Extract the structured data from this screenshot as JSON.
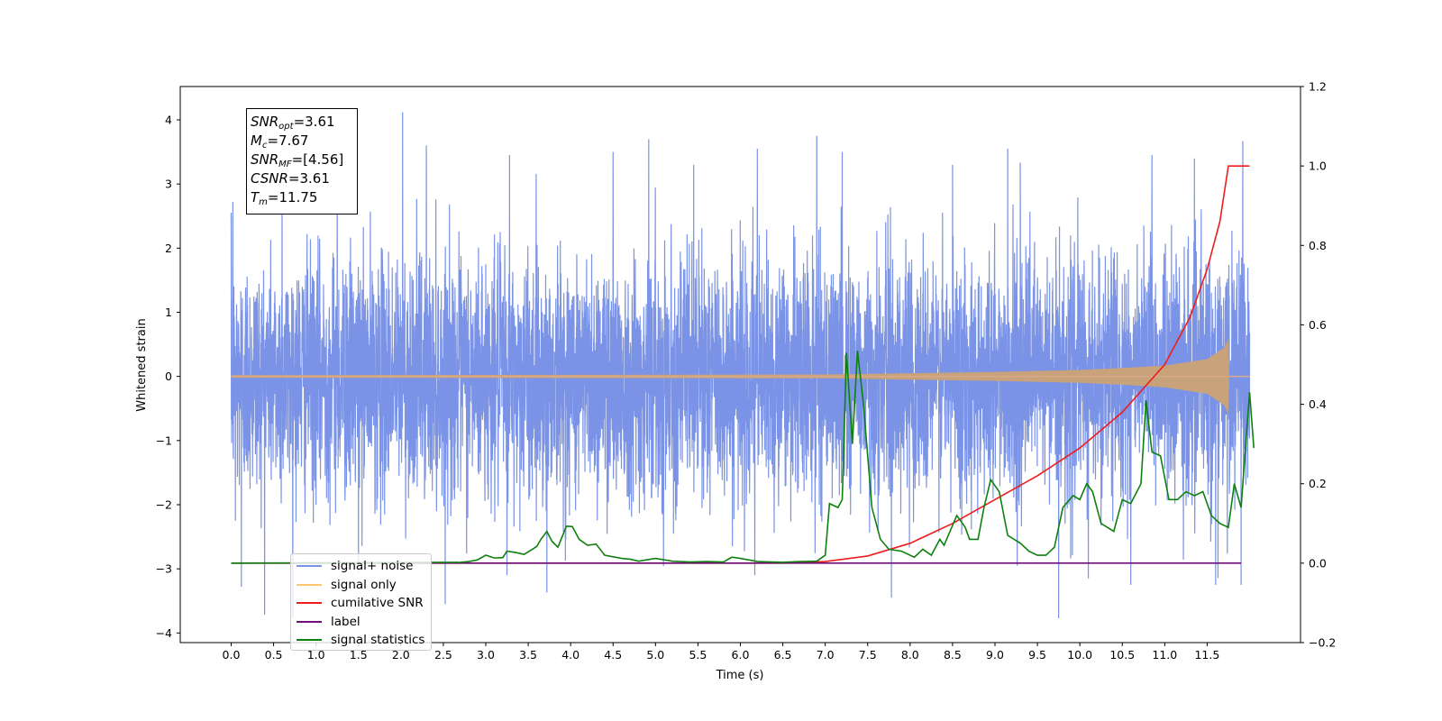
{
  "chart_data": {
    "type": "line",
    "title": "",
    "xlabel": "Time (s)",
    "ylabel": "Whitened strain",
    "y2label": "",
    "xlim": [
      -0.6,
      12.6
    ],
    "ylim": [
      -4.15,
      4.52
    ],
    "y2lim": [
      -0.2,
      1.2
    ],
    "x_ticks": [
      0.0,
      0.5,
      1.0,
      1.5,
      2.0,
      2.5,
      3.0,
      3.5,
      4.0,
      4.5,
      5.0,
      5.5,
      6.0,
      6.5,
      7.0,
      7.5,
      8.0,
      8.5,
      9.0,
      9.5,
      10.0,
      10.5,
      11.0,
      11.5
    ],
    "x_tick_labels": [
      "0.0",
      "0.5",
      "1.0",
      "1.5",
      "2.0",
      "2.5",
      "3.0",
      "3.5",
      "4.0",
      "4.5",
      "5.0",
      "5.5",
      "6.0",
      "6.5",
      "7.0",
      "7.5",
      "8.0",
      "8.5",
      "9.0",
      "9.5",
      "10.0",
      "10.5",
      "11.0",
      "11.5"
    ],
    "y_ticks": [
      -4,
      -3,
      -2,
      -1,
      0,
      1,
      2,
      3,
      4
    ],
    "y_tick_labels": [
      "−4",
      "−3",
      "−2",
      "−1",
      "0",
      "1",
      "2",
      "3",
      "4"
    ],
    "y2_ticks": [
      -0.2,
      0.0,
      0.2,
      0.4,
      0.6,
      0.8,
      1.0,
      1.2
    ],
    "y2_tick_labels": [
      "−0.2",
      "0.0",
      "0.2",
      "0.4",
      "0.6",
      "0.8",
      "1.0",
      "1.2"
    ],
    "grid": false,
    "legend_position": "lower-left",
    "series": [
      {
        "name": "signal+ noise",
        "axis": "left",
        "color": "#7a93e6",
        "description": "dense gaussian noise trace sampled over 0.0–12.0 s, core roughly between −1.5 and 1.5 with spikes to about 4.1 and −3.8",
        "x_range": [
          0.0,
          12.0
        ],
        "typical_band": [
          -1.5,
          1.5
        ],
        "max": 4.12,
        "min": -3.77,
        "peaks": [
          {
            "x": 0.02,
            "y": 2.72
          },
          {
            "x": 0.05,
            "y": -2.25
          },
          {
            "x": 0.12,
            "y": -3.28
          },
          {
            "x": 0.6,
            "y": 3.33
          },
          {
            "x": 1.25,
            "y": 3.45
          },
          {
            "x": 1.5,
            "y": -3.05
          },
          {
            "x": 2.02,
            "y": 4.12
          },
          {
            "x": 2.3,
            "y": 3.6
          },
          {
            "x": 3.28,
            "y": 3.45
          },
          {
            "x": 3.25,
            "y": -3.1
          },
          {
            "x": 3.72,
            "y": -3.37
          },
          {
            "x": 4.5,
            "y": 3.5
          },
          {
            "x": 4.92,
            "y": 3.7
          },
          {
            "x": 5.45,
            "y": 3.3
          },
          {
            "x": 6.2,
            "y": 3.55
          },
          {
            "x": 6.17,
            "y": -3.1
          },
          {
            "x": 6.9,
            "y": 3.75
          },
          {
            "x": 7.2,
            "y": 3.5
          },
          {
            "x": 7.78,
            "y": -3.45
          },
          {
            "x": 8.5,
            "y": 3.3
          },
          {
            "x": 9.15,
            "y": 3.55
          },
          {
            "x": 9.75,
            "y": -3.77
          },
          {
            "x": 10.1,
            "y": -3.15
          },
          {
            "x": 10.6,
            "y": -3.25
          },
          {
            "x": 10.85,
            "y": 3.45
          },
          {
            "x": 11.35,
            "y": 3.4
          },
          {
            "x": 11.6,
            "y": -3.25
          },
          {
            "x": 11.92,
            "y": 3.67
          },
          {
            "x": 11.9,
            "y": -3.25
          }
        ]
      },
      {
        "name": "signal only",
        "axis": "left",
        "color": "#ffc66e",
        "description": "chirp waveform: near-zero flat line, amplitude slowly growing after ~7.5 s and peaking near 11.75 s",
        "envelope": [
          {
            "x": 0.0,
            "y": 0.02
          },
          {
            "x": 7.0,
            "y": 0.03
          },
          {
            "x": 8.0,
            "y": 0.05
          },
          {
            "x": 9.0,
            "y": 0.07
          },
          {
            "x": 10.0,
            "y": 0.1
          },
          {
            "x": 10.5,
            "y": 0.13
          },
          {
            "x": 11.0,
            "y": 0.17
          },
          {
            "x": 11.5,
            "y": 0.27
          },
          {
            "x": 11.7,
            "y": 0.45
          },
          {
            "x": 11.75,
            "y": 0.58
          },
          {
            "x": 11.76,
            "y": 0.0
          },
          {
            "x": 12.0,
            "y": 0.0
          }
        ]
      },
      {
        "name": "cumilative SNR",
        "axis": "right",
        "color": "#ee1c1c",
        "points": [
          {
            "x": 0.0,
            "y": 0.0
          },
          {
            "x": 6.5,
            "y": 0.0
          },
          {
            "x": 7.0,
            "y": 0.004
          },
          {
            "x": 7.5,
            "y": 0.018
          },
          {
            "x": 8.0,
            "y": 0.05
          },
          {
            "x": 8.5,
            "y": 0.1
          },
          {
            "x": 9.0,
            "y": 0.16
          },
          {
            "x": 9.5,
            "y": 0.22
          },
          {
            "x": 10.0,
            "y": 0.29
          },
          {
            "x": 10.5,
            "y": 0.38
          },
          {
            "x": 11.0,
            "y": 0.5
          },
          {
            "x": 11.3,
            "y": 0.62
          },
          {
            "x": 11.5,
            "y": 0.74
          },
          {
            "x": 11.65,
            "y": 0.86
          },
          {
            "x": 11.75,
            "y": 1.0
          },
          {
            "x": 12.0,
            "y": 1.0
          }
        ]
      },
      {
        "name": "label",
        "axis": "right",
        "color": "#6f0f78",
        "points": [
          {
            "x": 0.0,
            "y": 0.0
          },
          {
            "x": 11.9,
            "y": 0.0
          }
        ]
      },
      {
        "name": "signal statistics",
        "axis": "right",
        "color": "#0e800e",
        "points": [
          {
            "x": 0.0,
            "y": 0.0
          },
          {
            "x": 2.7,
            "y": 0.002
          },
          {
            "x": 2.8,
            "y": 0.004
          },
          {
            "x": 2.9,
            "y": 0.008
          },
          {
            "x": 3.0,
            "y": 0.02
          },
          {
            "x": 3.1,
            "y": 0.013
          },
          {
            "x": 3.2,
            "y": 0.014
          },
          {
            "x": 3.25,
            "y": 0.03
          },
          {
            "x": 3.35,
            "y": 0.027
          },
          {
            "x": 3.45,
            "y": 0.022
          },
          {
            "x": 3.55,
            "y": 0.035
          },
          {
            "x": 3.6,
            "y": 0.042
          },
          {
            "x": 3.65,
            "y": 0.06
          },
          {
            "x": 3.72,
            "y": 0.08
          },
          {
            "x": 3.78,
            "y": 0.055
          },
          {
            "x": 3.85,
            "y": 0.04
          },
          {
            "x": 3.95,
            "y": 0.093
          },
          {
            "x": 4.02,
            "y": 0.092
          },
          {
            "x": 4.1,
            "y": 0.06
          },
          {
            "x": 4.2,
            "y": 0.045
          },
          {
            "x": 4.3,
            "y": 0.048
          },
          {
            "x": 4.4,
            "y": 0.02
          },
          {
            "x": 4.6,
            "y": 0.012
          },
          {
            "x": 4.7,
            "y": 0.01
          },
          {
            "x": 4.8,
            "y": 0.005
          },
          {
            "x": 5.0,
            "y": 0.012
          },
          {
            "x": 5.2,
            "y": 0.005
          },
          {
            "x": 5.4,
            "y": 0.003
          },
          {
            "x": 5.6,
            "y": 0.004
          },
          {
            "x": 5.8,
            "y": 0.003
          },
          {
            "x": 5.9,
            "y": 0.015
          },
          {
            "x": 6.0,
            "y": 0.012
          },
          {
            "x": 6.2,
            "y": 0.004
          },
          {
            "x": 6.5,
            "y": 0.002
          },
          {
            "x": 6.7,
            "y": 0.004
          },
          {
            "x": 6.9,
            "y": 0.005
          },
          {
            "x": 7.0,
            "y": 0.02
          },
          {
            "x": 7.05,
            "y": 0.15
          },
          {
            "x": 7.15,
            "y": 0.14
          },
          {
            "x": 7.2,
            "y": 0.16
          },
          {
            "x": 7.25,
            "y": 0.53
          },
          {
            "x": 7.32,
            "y": 0.3
          },
          {
            "x": 7.38,
            "y": 0.535
          },
          {
            "x": 7.45,
            "y": 0.4
          },
          {
            "x": 7.55,
            "y": 0.14
          },
          {
            "x": 7.65,
            "y": 0.06
          },
          {
            "x": 7.75,
            "y": 0.035
          },
          {
            "x": 7.9,
            "y": 0.03
          },
          {
            "x": 8.0,
            "y": 0.02
          },
          {
            "x": 8.05,
            "y": 0.015
          },
          {
            "x": 8.15,
            "y": 0.035
          },
          {
            "x": 8.25,
            "y": 0.02
          },
          {
            "x": 8.35,
            "y": 0.06
          },
          {
            "x": 8.4,
            "y": 0.045
          },
          {
            "x": 8.55,
            "y": 0.12
          },
          {
            "x": 8.65,
            "y": 0.09
          },
          {
            "x": 8.7,
            "y": 0.06
          },
          {
            "x": 8.8,
            "y": 0.06
          },
          {
            "x": 8.87,
            "y": 0.14
          },
          {
            "x": 8.95,
            "y": 0.21
          },
          {
            "x": 9.05,
            "y": 0.18
          },
          {
            "x": 9.15,
            "y": 0.07
          },
          {
            "x": 9.3,
            "y": 0.05
          },
          {
            "x": 9.4,
            "y": 0.03
          },
          {
            "x": 9.5,
            "y": 0.02
          },
          {
            "x": 9.6,
            "y": 0.02
          },
          {
            "x": 9.7,
            "y": 0.04
          },
          {
            "x": 9.8,
            "y": 0.14
          },
          {
            "x": 9.92,
            "y": 0.17
          },
          {
            "x": 10.0,
            "y": 0.16
          },
          {
            "x": 10.08,
            "y": 0.2
          },
          {
            "x": 10.15,
            "y": 0.18
          },
          {
            "x": 10.25,
            "y": 0.1
          },
          {
            "x": 10.4,
            "y": 0.08
          },
          {
            "x": 10.5,
            "y": 0.16
          },
          {
            "x": 10.6,
            "y": 0.15
          },
          {
            "x": 10.72,
            "y": 0.2
          },
          {
            "x": 10.78,
            "y": 0.41
          },
          {
            "x": 10.85,
            "y": 0.28
          },
          {
            "x": 10.95,
            "y": 0.27
          },
          {
            "x": 11.05,
            "y": 0.16
          },
          {
            "x": 11.15,
            "y": 0.16
          },
          {
            "x": 11.25,
            "y": 0.18
          },
          {
            "x": 11.35,
            "y": 0.17
          },
          {
            "x": 11.45,
            "y": 0.18
          },
          {
            "x": 11.55,
            "y": 0.12
          },
          {
            "x": 11.65,
            "y": 0.1
          },
          {
            "x": 11.75,
            "y": 0.09
          },
          {
            "x": 11.82,
            "y": 0.2
          },
          {
            "x": 11.9,
            "y": 0.14
          },
          {
            "x": 12.0,
            "y": 0.43
          },
          {
            "x": 12.05,
            "y": 0.29
          }
        ]
      }
    ],
    "annotation_box": {
      "lines": [
        {
          "label": "SNR",
          "sub": "opt",
          "value": "=3.61"
        },
        {
          "label": "M",
          "sub": "c",
          "value": "=7.67"
        },
        {
          "label": "SNR",
          "sub": "MF",
          "value": "=[4.56]"
        },
        {
          "label": "CSNR",
          "sub": "",
          "value": "=3.61"
        },
        {
          "label": "T",
          "sub": "m",
          "value": "=11.75"
        }
      ]
    },
    "legend": [
      {
        "label": "signal+ noise",
        "color": "#7a93e6"
      },
      {
        "label": "signal only",
        "color": "#ffc66e"
      },
      {
        "label": "cumilative SNR",
        "color": "#ee1c1c"
      },
      {
        "label": "label",
        "color": "#6f0f78"
      },
      {
        "label": "signal statistics",
        "color": "#0e800e"
      }
    ]
  }
}
